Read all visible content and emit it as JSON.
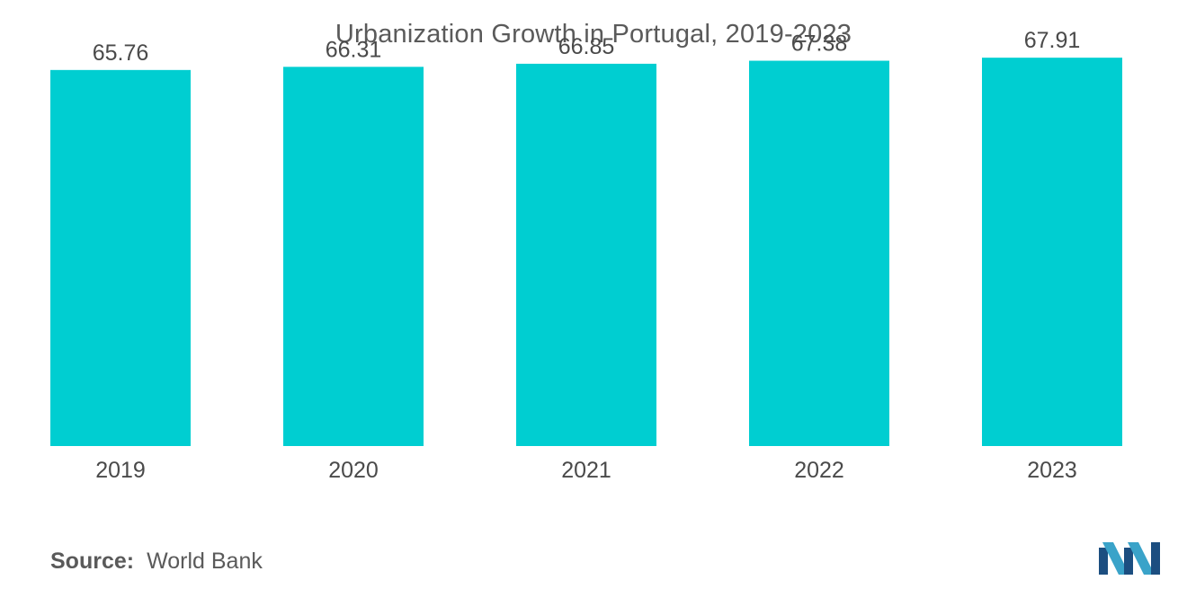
{
  "chart_data": {
    "type": "bar",
    "title": "Urbanization Growth in Portugal, 2019-2023",
    "categories": [
      "2019",
      "2020",
      "2021",
      "2022",
      "2023"
    ],
    "values": [
      65.76,
      66.31,
      66.85,
      67.38,
      67.91
    ],
    "value_labels": [
      "65.76",
      "66.31",
      "66.85",
      "67.38",
      "67.91"
    ],
    "xlabel": "",
    "ylabel": "",
    "ylim": [
      0,
      78
    ],
    "grid": false,
    "bar_color": "#00ced1"
  },
  "footer": {
    "source_label": "Source:",
    "source_value": "World Bank"
  },
  "logo": {
    "name": "mordor-intelligence-logo",
    "colors": [
      "#1c4e80",
      "#3aa3c9"
    ]
  }
}
